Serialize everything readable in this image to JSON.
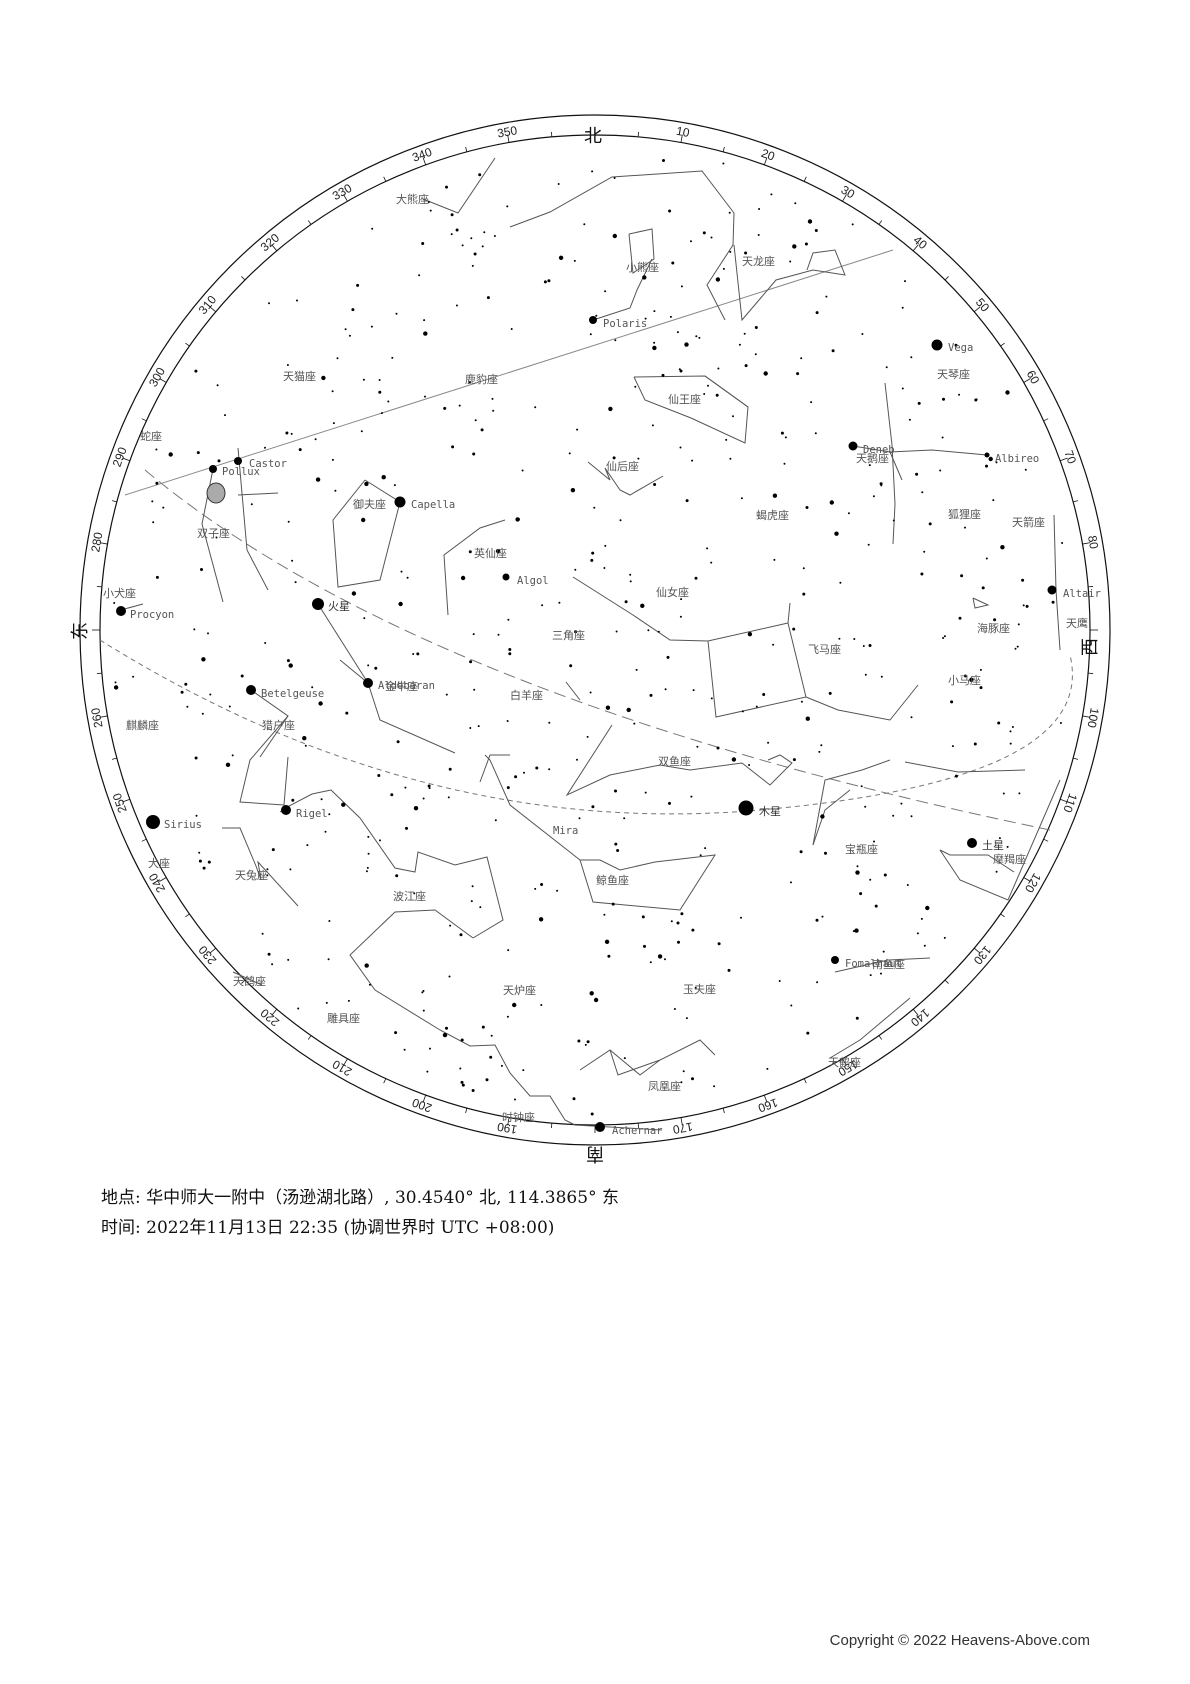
{
  "chart": {
    "cardinals": [
      "北",
      "东",
      "南",
      "西"
    ],
    "azimuth_labels": [
      "10",
      "20",
      "30",
      "40",
      "50",
      "60",
      "70",
      "80",
      "100",
      "110",
      "120",
      "130",
      "140",
      "150",
      "160",
      "170",
      "190",
      "200",
      "210",
      "220",
      "230",
      "240",
      "250",
      "260",
      "280",
      "290",
      "300",
      "310",
      "320",
      "330",
      "340",
      "350"
    ],
    "constellations": [
      "大熊座",
      "小熊座",
      "天龙座",
      "天猫座",
      "鹿豹座",
      "仙王座",
      "天鹅座",
      "狐狸座",
      "天箭座",
      "仙后座",
      "蝎虎座",
      "御夫座",
      "双子座",
      "英仙座",
      "小犬座",
      "仙女座",
      "海豚座",
      "三角座",
      "飞马座",
      "天鹰",
      "小马座",
      "麒麟座",
      "猎户座",
      "白羊座",
      "金牛座",
      "双鱼座",
      "宝瓶座",
      "摩羯座",
      "鲸鱼座",
      "天兔座",
      "波江座",
      "天鸽座",
      "天炉座",
      "玉夫座",
      "南鱼座",
      "雕具座",
      "天鹤座",
      "凤凰座",
      "时钟座",
      "蛇座",
      "犬座",
      "天琴座"
    ],
    "stars": [
      "Polaris",
      "Vega",
      "Deneb",
      "Albireo",
      "Castor",
      "Pollux",
      "Capella",
      "Algol",
      "Procyon",
      "Altair",
      "Betelgeuse",
      "Aldebaran",
      "Rigel",
      "Sirius",
      "Mira",
      "Fomalhaut",
      "Achernar"
    ],
    "planets": [
      "火星",
      "木星",
      "土星"
    ]
  },
  "location": "地点: 华中师大一附中（汤逊湖北路）, 30.4540° 北, 114.3865° 东",
  "time": "时间: 2022年11月13日 22:35 (协调世界时 UTC +08:00)",
  "copyright": "Copyright © 2022 Heavens-Above.com"
}
